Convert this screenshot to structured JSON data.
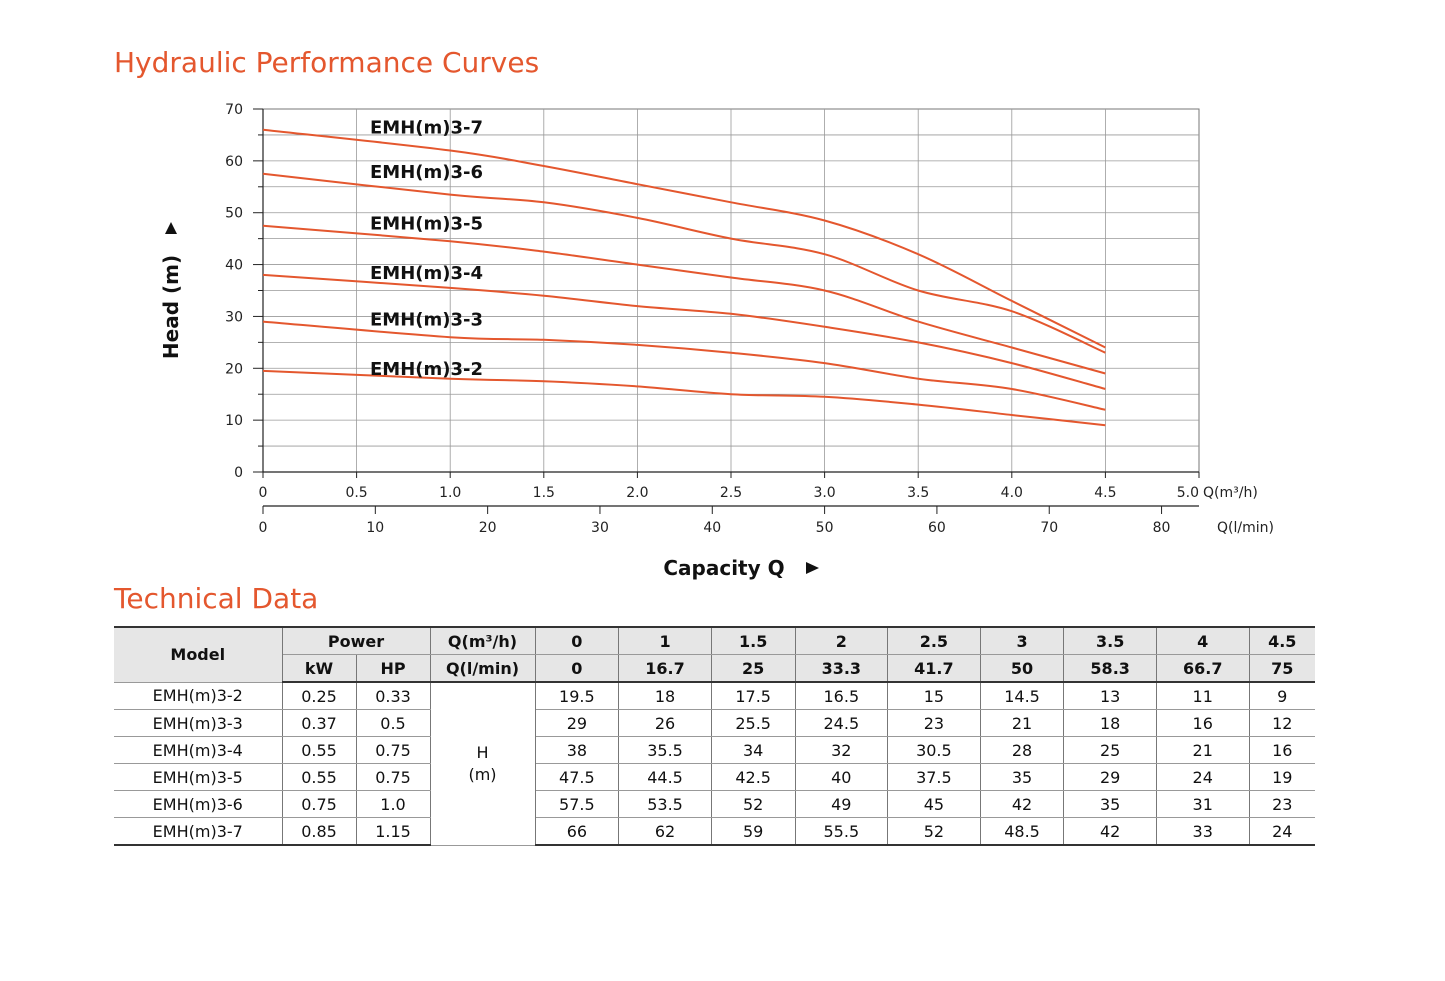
{
  "chart_title": "Hydraulic Performance Curves",
  "table_title": "Technical Data",
  "chart_data": {
    "type": "line",
    "title": "",
    "ylabel": "Head (m)",
    "xlabel": "Capacity Q",
    "ylim": [
      0,
      70
    ],
    "xlim": [
      0,
      5.0
    ],
    "grid": true,
    "y_ticks": [
      "0",
      "10",
      "20",
      "30",
      "40",
      "50",
      "60",
      "70"
    ],
    "x_ticks": [
      "0",
      "0.5",
      "1.0",
      "1.5",
      "2.0",
      "2.5",
      "3.0",
      "3.5",
      "4.0",
      "4.5",
      "5.0"
    ],
    "x_unit": "Q(m³/h)",
    "x2_ticks": [
      "0",
      "10",
      "20",
      "30",
      "40",
      "50",
      "60",
      "70",
      "80"
    ],
    "x2_unit": "Q(l/min)",
    "line_color": "#e4572e",
    "x": [
      0,
      1,
      1.5,
      2,
      2.5,
      3,
      3.5,
      4,
      4.5
    ],
    "series": [
      {
        "name": "EMH(m)3-7",
        "values": [
          66,
          62,
          59,
          55.5,
          52,
          48.5,
          42,
          33,
          24
        ]
      },
      {
        "name": "EMH(m)3-6",
        "values": [
          57.5,
          53.5,
          52,
          49,
          45,
          42,
          35,
          31,
          23
        ]
      },
      {
        "name": "EMH(m)3-5",
        "values": [
          47.5,
          44.5,
          42.5,
          40,
          37.5,
          35,
          29,
          24,
          19
        ]
      },
      {
        "name": "EMH(m)3-4",
        "values": [
          38,
          35.5,
          34,
          32,
          30.5,
          28,
          25,
          21,
          16
        ]
      },
      {
        "name": "EMH(m)3-3",
        "values": [
          29,
          26,
          25.5,
          24.5,
          23,
          21,
          18,
          16,
          12
        ]
      },
      {
        "name": "EMH(m)3-2",
        "values": [
          19.5,
          18,
          17.5,
          16.5,
          15,
          14.5,
          13,
          11,
          9
        ]
      }
    ]
  },
  "table": {
    "model_header": "Model",
    "power_header": "Power",
    "kw_header": "kW",
    "hp_header": "HP",
    "q_m3h_header": "Q(m³/h)",
    "q_lmin_header": "Q(l/min)",
    "q_m3h": [
      "0",
      "1",
      "1.5",
      "2",
      "2.5",
      "3",
      "3.5",
      "4",
      "4.5"
    ],
    "q_lmin": [
      "0",
      "16.7",
      "25",
      "33.3",
      "41.7",
      "50",
      "58.3",
      "66.7",
      "75"
    ],
    "h_label": "H",
    "h_unit": "(m)",
    "rows": [
      {
        "model": "EMH(m)3-2",
        "kw": "0.25",
        "hp": "0.33",
        "h": [
          "19.5",
          "18",
          "17.5",
          "16.5",
          "15",
          "14.5",
          "13",
          "11",
          "9"
        ]
      },
      {
        "model": "EMH(m)3-3",
        "kw": "0.37",
        "hp": "0.5",
        "h": [
          "29",
          "26",
          "25.5",
          "24.5",
          "23",
          "21",
          "18",
          "16",
          "12"
        ]
      },
      {
        "model": "EMH(m)3-4",
        "kw": "0.55",
        "hp": "0.75",
        "h": [
          "38",
          "35.5",
          "34",
          "32",
          "30.5",
          "28",
          "25",
          "21",
          "16"
        ]
      },
      {
        "model": "EMH(m)3-5",
        "kw": "0.55",
        "hp": "0.75",
        "h": [
          "47.5",
          "44.5",
          "42.5",
          "40",
          "37.5",
          "35",
          "29",
          "24",
          "19"
        ]
      },
      {
        "model": "EMH(m)3-6",
        "kw": "0.75",
        "hp": "1.0",
        "h": [
          "57.5",
          "53.5",
          "52",
          "49",
          "45",
          "42",
          "35",
          "31",
          "23"
        ]
      },
      {
        "model": "EMH(m)3-7",
        "kw": "0.85",
        "hp": "1.15",
        "h": [
          "66",
          "62",
          "59",
          "55.5",
          "52",
          "48.5",
          "42",
          "33",
          "24"
        ]
      }
    ]
  }
}
